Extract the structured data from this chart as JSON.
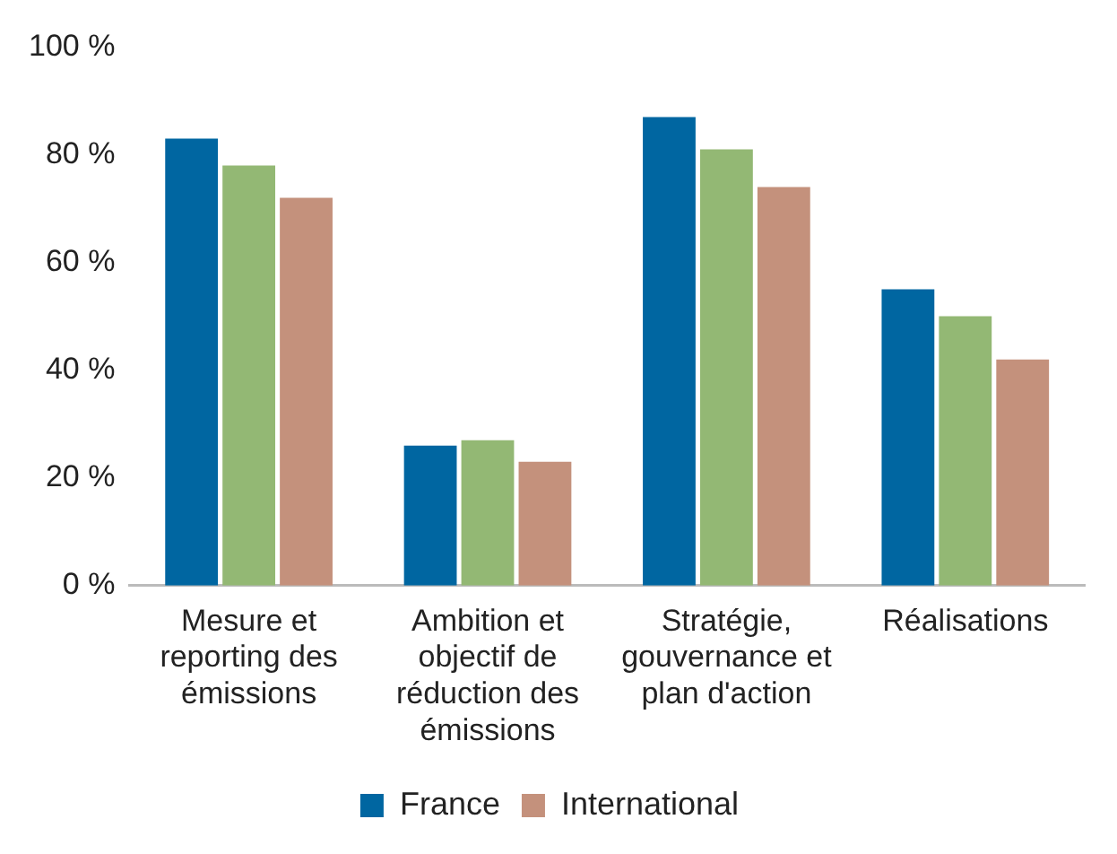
{
  "chart_data": {
    "type": "bar",
    "categories": [
      "Mesure et reporting des émissions",
      "Ambition et objectif de réduction des émissions",
      "Stratégie, gouvernance et plan d'action",
      "Réalisations"
    ],
    "series": [
      {
        "name": "France",
        "color": "#0066a1",
        "values": [
          83,
          26,
          87,
          55
        ]
      },
      {
        "color": "#93b874",
        "values": [
          78,
          27,
          81,
          50
        ]
      },
      {
        "name": "International",
        "color": "#c4917c",
        "values": [
          72,
          23,
          74,
          42
        ]
      }
    ],
    "ylim": [
      0,
      100
    ],
    "yticks": [
      {
        "value": 0,
        "label": "0 %"
      },
      {
        "value": 20,
        "label": "20 %"
      },
      {
        "value": 40,
        "label": "40 %"
      },
      {
        "value": 60,
        "label": "60 %"
      },
      {
        "value": 80,
        "label": "80 %"
      },
      {
        "value": 100,
        "label": "100 %"
      }
    ],
    "grid": false,
    "legend": "bottom"
  }
}
